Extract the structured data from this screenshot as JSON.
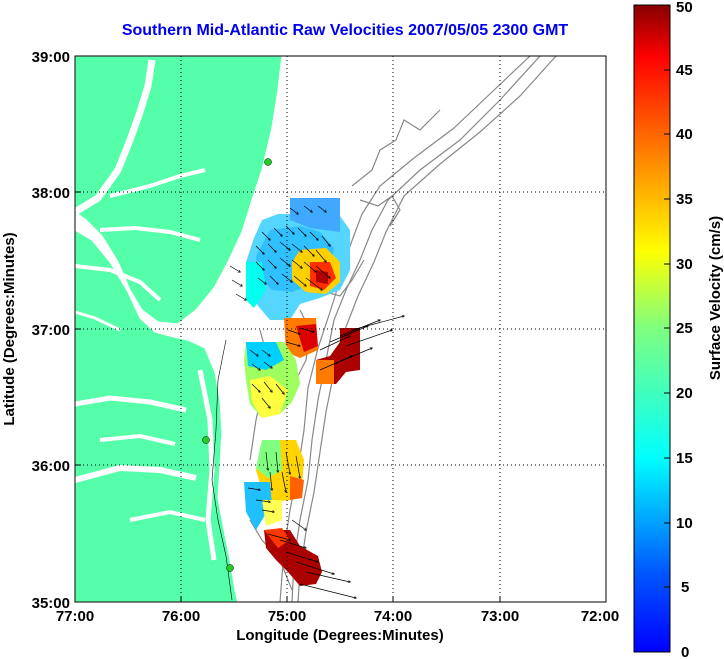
{
  "title": "Southern Mid-Atlantic Raw Velocities 2007/05/05 2300 GMT",
  "map": {
    "x_ticks": [
      "77:00",
      "76:00",
      "75:00",
      "74:00",
      "73:00",
      "72:00"
    ],
    "y_ticks": [
      "39:00",
      "38:00",
      "37:00",
      "36:00",
      "35:00"
    ],
    "xlabel": "Longitude (Degrees:Minutes)",
    "ylabel": "Latitude (Degrees:Minutes)",
    "land_color": "#55ffaa",
    "water_color": "#ffffff",
    "bathymetry_color": "#888888",
    "station_color": "#22cc22"
  },
  "colorbar": {
    "label": "Surface Velocity (cm/s)",
    "ticks": [
      "0",
      "5",
      "10",
      "15",
      "20",
      "25",
      "30",
      "35",
      "40",
      "45",
      "50"
    ],
    "min": 0,
    "max": 50,
    "colormap": "jet"
  }
}
